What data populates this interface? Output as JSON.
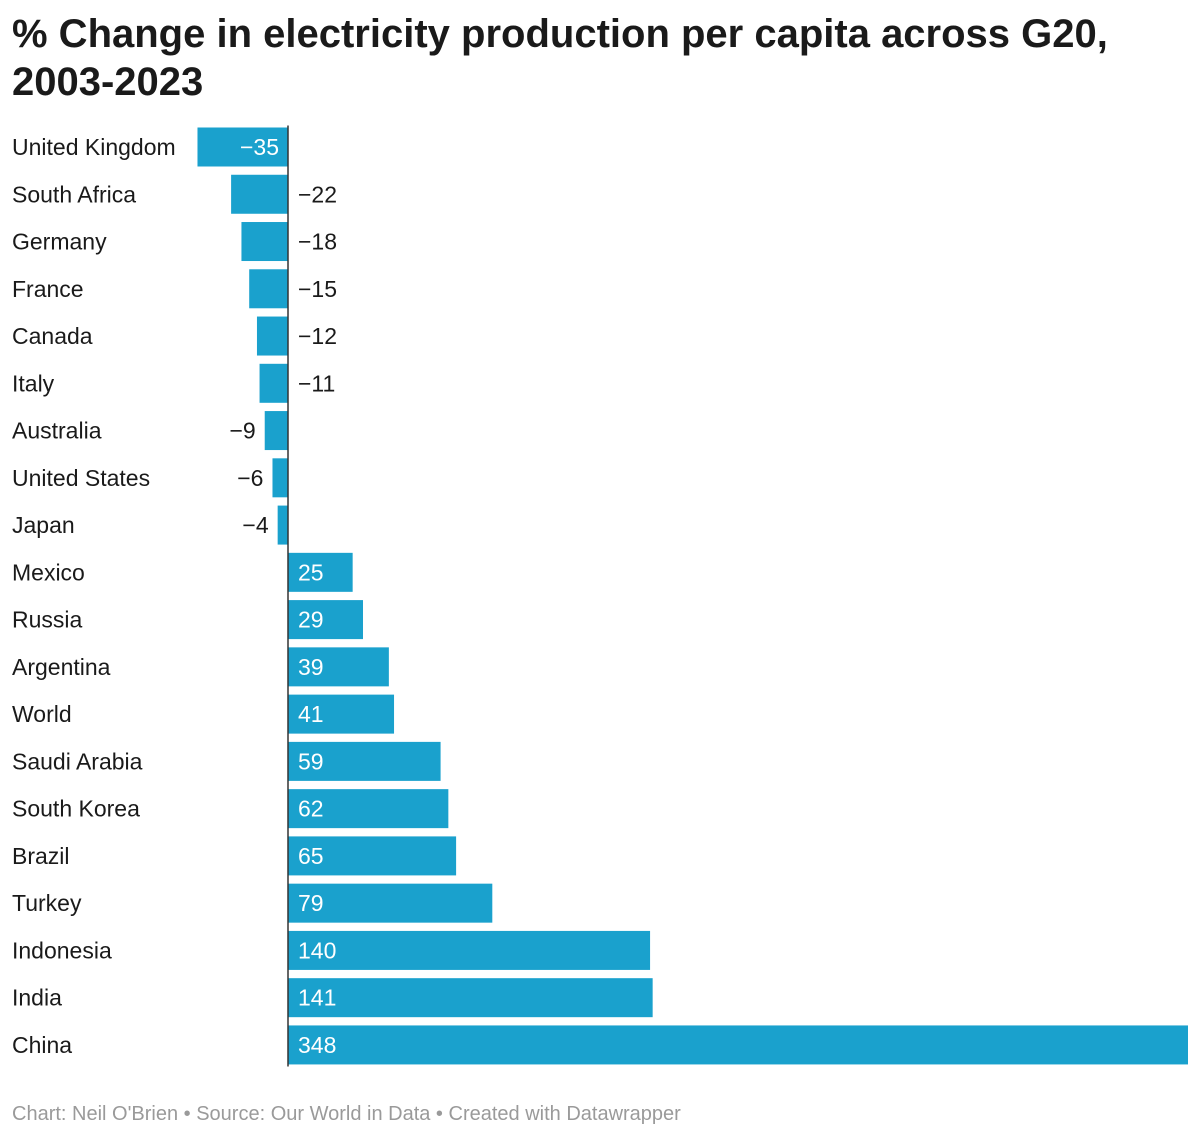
{
  "chart_data": {
    "type": "bar",
    "orientation": "horizontal",
    "title": "% Change in electricity production per capita across G20, 2003-2023",
    "xlabel": "",
    "ylabel": "",
    "xlim": [
      -35,
      348
    ],
    "grid": false,
    "bar_color": "#1aa1cd",
    "categories": [
      "United Kingdom",
      "South Africa",
      "Germany",
      "France",
      "Canada",
      "Italy",
      "Australia",
      "United States",
      "Japan",
      "Mexico",
      "Russia",
      "Argentina",
      "World",
      "Saudi Arabia",
      "South Korea",
      "Brazil",
      "Turkey",
      "Indonesia",
      "India",
      "China"
    ],
    "values": [
      -35,
      -22,
      -18,
      -15,
      -12,
      -11,
      -9,
      -6,
      -4,
      25,
      29,
      39,
      41,
      59,
      62,
      65,
      79,
      140,
      141,
      348
    ],
    "value_labels": [
      "−35",
      "−22",
      "−18",
      "−15",
      "−12",
      "−11",
      "−9",
      "−6",
      "−4",
      "25",
      "29",
      "39",
      "41",
      "59",
      "62",
      "65",
      "79",
      "140",
      "141",
      "348"
    ]
  },
  "footer": {
    "credit": "Chart: Neil O'Brien • Source: Our World in Data • Created with Datawrapper"
  }
}
